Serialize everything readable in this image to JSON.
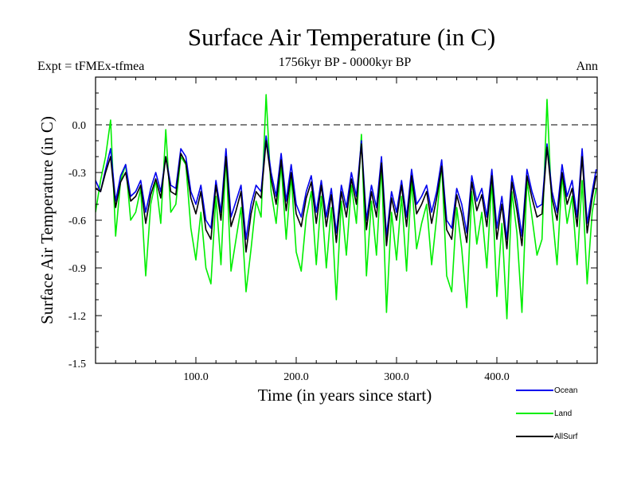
{
  "chart_data": {
    "type": "line",
    "title": "Surface Air Temperature (in C)",
    "subtitle_left": "Expt = tFMEx-tfmea",
    "subtitle_center": "1756kyr BP - 0000kyr BP",
    "subtitle_right": "Ann",
    "xlabel": "Time (in years since start)",
    "ylabel": "Surface Air Temperature (in C)",
    "xlim": [
      0,
      500
    ],
    "ylim": [
      -1.5,
      0.3
    ],
    "x_ticks": [
      100.0,
      200.0,
      300.0,
      400.0
    ],
    "x_tick_labels": [
      "100.0",
      "200.0",
      "300.0",
      "400.0"
    ],
    "y_ticks": [
      0.0,
      -0.3,
      -0.6,
      -0.9,
      -1.2,
      -1.5
    ],
    "y_tick_labels": [
      "0.0",
      "-0.3",
      "-0.6",
      "-0.9",
      "-1.2",
      "-1.5"
    ],
    "reference_line": {
      "y": 0.0,
      "style": "dashed",
      "color": "#000000"
    },
    "series": [
      {
        "name": "Land",
        "color": "#00ee00",
        "x": [
          0,
          5,
          10,
          15,
          20,
          25,
          30,
          35,
          40,
          45,
          50,
          55,
          60,
          65,
          70,
          75,
          80,
          85,
          90,
          95,
          100,
          105,
          110,
          115,
          120,
          125,
          130,
          135,
          140,
          145,
          150,
          155,
          160,
          165,
          170,
          175,
          180,
          185,
          190,
          195,
          200,
          205,
          210,
          215,
          220,
          225,
          230,
          235,
          240,
          245,
          250,
          255,
          260,
          265,
          270,
          275,
          280,
          285,
          290,
          295,
          300,
          305,
          310,
          315,
          320,
          325,
          330,
          335,
          340,
          345,
          350,
          355,
          360,
          365,
          370,
          375,
          380,
          385,
          390,
          395,
          400,
          405,
          410,
          415,
          420,
          425,
          430,
          435,
          440,
          445,
          450,
          455,
          460,
          465,
          470,
          475,
          480,
          485,
          490,
          495,
          499
        ],
        "values": [
          -0.55,
          -0.35,
          -0.2,
          0.03,
          -0.7,
          -0.35,
          -0.25,
          -0.6,
          -0.55,
          -0.4,
          -0.95,
          -0.5,
          -0.35,
          -0.62,
          -0.03,
          -0.55,
          -0.5,
          -0.2,
          -0.25,
          -0.65,
          -0.85,
          -0.55,
          -0.9,
          -1.0,
          -0.45,
          -0.88,
          -0.2,
          -0.92,
          -0.72,
          -0.52,
          -1.05,
          -0.78,
          -0.48,
          -0.58,
          0.19,
          -0.42,
          -0.62,
          -0.25,
          -0.72,
          -0.32,
          -0.8,
          -0.92,
          -0.58,
          -0.42,
          -0.88,
          -0.45,
          -0.9,
          -0.52,
          -1.1,
          -0.48,
          -0.82,
          -0.38,
          -0.62,
          -0.06,
          -0.95,
          -0.48,
          -0.82,
          -0.25,
          -1.18,
          -0.55,
          -0.85,
          -0.45,
          -0.92,
          -0.35,
          -0.78,
          -0.62,
          -0.5,
          -0.88,
          -0.58,
          -0.25,
          -0.95,
          -1.05,
          -0.52,
          -0.78,
          -1.15,
          -0.42,
          -0.75,
          -0.55,
          -0.9,
          -0.35,
          -1.08,
          -0.62,
          -1.22,
          -0.42,
          -0.68,
          -1.18,
          -0.35,
          -0.58,
          -0.82,
          -0.72,
          0.16,
          -0.55,
          -0.88,
          -0.32,
          -0.62,
          -0.45,
          -0.88,
          -0.35,
          -1.0,
          -0.55,
          -0.4
        ]
      },
      {
        "name": "Ocean",
        "color": "#0000ee",
        "x": [
          0,
          5,
          10,
          15,
          20,
          25,
          30,
          35,
          40,
          45,
          50,
          55,
          60,
          65,
          70,
          75,
          80,
          85,
          90,
          95,
          100,
          105,
          110,
          115,
          120,
          125,
          130,
          135,
          140,
          145,
          150,
          155,
          160,
          165,
          170,
          175,
          180,
          185,
          190,
          195,
          200,
          205,
          210,
          215,
          220,
          225,
          230,
          235,
          240,
          245,
          250,
          255,
          260,
          265,
          270,
          275,
          280,
          285,
          290,
          295,
          300,
          305,
          310,
          315,
          320,
          325,
          330,
          335,
          340,
          345,
          350,
          355,
          360,
          365,
          370,
          375,
          380,
          385,
          390,
          395,
          400,
          405,
          410,
          415,
          420,
          425,
          430,
          435,
          440,
          445,
          450,
          455,
          460,
          465,
          470,
          475,
          480,
          485,
          490,
          495,
          499
        ],
        "values": [
          -0.35,
          -0.42,
          -0.28,
          -0.15,
          -0.48,
          -0.32,
          -0.25,
          -0.45,
          -0.42,
          -0.35,
          -0.55,
          -0.4,
          -0.3,
          -0.42,
          -0.2,
          -0.38,
          -0.4,
          -0.15,
          -0.2,
          -0.42,
          -0.5,
          -0.38,
          -0.6,
          -0.65,
          -0.35,
          -0.55,
          -0.15,
          -0.58,
          -0.48,
          -0.38,
          -0.72,
          -0.5,
          -0.38,
          -0.42,
          -0.07,
          -0.3,
          -0.45,
          -0.18,
          -0.48,
          -0.25,
          -0.5,
          -0.58,
          -0.42,
          -0.32,
          -0.55,
          -0.35,
          -0.58,
          -0.4,
          -0.68,
          -0.38,
          -0.52,
          -0.3,
          -0.45,
          -0.1,
          -0.6,
          -0.38,
          -0.52,
          -0.2,
          -0.7,
          -0.42,
          -0.55,
          -0.35,
          -0.58,
          -0.28,
          -0.5,
          -0.45,
          -0.38,
          -0.55,
          -0.42,
          -0.22,
          -0.6,
          -0.65,
          -0.4,
          -0.5,
          -0.68,
          -0.32,
          -0.48,
          -0.4,
          -0.58,
          -0.28,
          -0.65,
          -0.45,
          -0.72,
          -0.32,
          -0.48,
          -0.7,
          -0.28,
          -0.42,
          -0.52,
          -0.5,
          -0.12,
          -0.42,
          -0.55,
          -0.25,
          -0.45,
          -0.35,
          -0.58,
          -0.15,
          -0.62,
          -0.42,
          -0.28
        ]
      },
      {
        "name": "AllSurf",
        "color": "#000000",
        "x": [
          0,
          5,
          10,
          15,
          20,
          25,
          30,
          35,
          40,
          45,
          50,
          55,
          60,
          65,
          70,
          75,
          80,
          85,
          90,
          95,
          100,
          105,
          110,
          115,
          120,
          125,
          130,
          135,
          140,
          145,
          150,
          155,
          160,
          165,
          170,
          175,
          180,
          185,
          190,
          195,
          200,
          205,
          210,
          215,
          220,
          225,
          230,
          235,
          240,
          245,
          250,
          255,
          260,
          265,
          270,
          275,
          280,
          285,
          290,
          295,
          300,
          305,
          310,
          315,
          320,
          325,
          330,
          335,
          340,
          345,
          350,
          355,
          360,
          365,
          370,
          375,
          380,
          385,
          390,
          395,
          400,
          405,
          410,
          415,
          420,
          425,
          430,
          435,
          440,
          445,
          450,
          455,
          460,
          465,
          470,
          475,
          480,
          485,
          490,
          495,
          499
        ],
        "values": [
          -0.4,
          -0.42,
          -0.3,
          -0.2,
          -0.52,
          -0.36,
          -0.3,
          -0.48,
          -0.45,
          -0.38,
          -0.62,
          -0.44,
          -0.34,
          -0.46,
          -0.2,
          -0.42,
          -0.44,
          -0.18,
          -0.24,
          -0.46,
          -0.56,
          -0.42,
          -0.66,
          -0.72,
          -0.38,
          -0.6,
          -0.2,
          -0.64,
          -0.54,
          -0.42,
          -0.8,
          -0.56,
          -0.42,
          -0.46,
          -0.1,
          -0.34,
          -0.5,
          -0.22,
          -0.54,
          -0.3,
          -0.56,
          -0.64,
          -0.46,
          -0.36,
          -0.62,
          -0.38,
          -0.64,
          -0.44,
          -0.74,
          -0.42,
          -0.58,
          -0.34,
          -0.5,
          -0.12,
          -0.66,
          -0.42,
          -0.58,
          -0.24,
          -0.76,
          -0.46,
          -0.6,
          -0.38,
          -0.64,
          -0.32,
          -0.56,
          -0.5,
          -0.42,
          -0.62,
          -0.46,
          -0.26,
          -0.66,
          -0.72,
          -0.44,
          -0.56,
          -0.74,
          -0.36,
          -0.54,
          -0.44,
          -0.64,
          -0.32,
          -0.72,
          -0.5,
          -0.78,
          -0.36,
          -0.54,
          -0.76,
          -0.32,
          -0.46,
          -0.58,
          -0.56,
          -0.14,
          -0.46,
          -0.6,
          -0.3,
          -0.5,
          -0.4,
          -0.64,
          -0.2,
          -0.68,
          -0.46,
          -0.32
        ]
      }
    ],
    "legend": [
      {
        "label": "Ocean",
        "color": "#0000ee"
      },
      {
        "label": "Land",
        "color": "#00ee00"
      },
      {
        "label": "AllSurf",
        "color": "#000000"
      }
    ]
  }
}
